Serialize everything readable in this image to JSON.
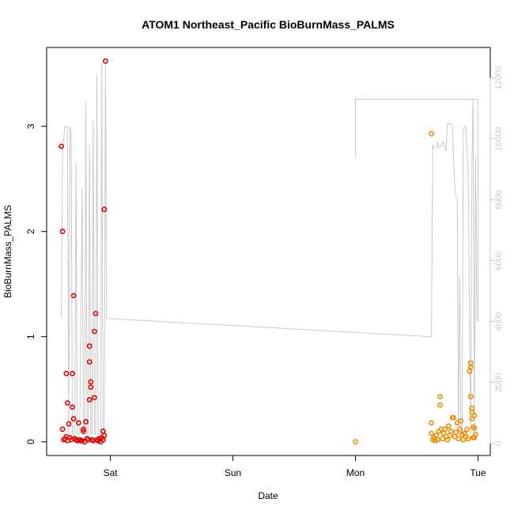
{
  "chart_data": {
    "type": "scatter",
    "title": "ATOM1 Northeast_Pacific BioBurnMass_PALMS",
    "xlabel": "Date",
    "ylabel": "BioBurnMass_PALMS",
    "x_ticks": [
      "Sat",
      "Sun",
      "Mon",
      "Tue"
    ],
    "y_ticks": [
      "0",
      "1",
      "2",
      "3"
    ],
    "y2_ticks": [
      "0",
      "2000",
      "4000",
      "6000",
      "8000",
      "10000",
      "12000"
    ],
    "xlim_days": [
      -0.52,
      3.1
    ],
    "ylim": [
      -0.13,
      3.75
    ],
    "y2lim": [
      -400,
      13000
    ],
    "colors": {
      "series_a": "#e00000",
      "series_b": "#f08c00",
      "altitude_line": "#c8c8c8"
    },
    "series": [
      {
        "values": [
          {
            "x": -0.4,
            "y": 2.81
          },
          {
            "x": -0.39,
            "y": 2.0
          },
          {
            "x": -0.39,
            "y": 0.12
          },
          {
            "x": -0.38,
            "y": 0.02
          },
          {
            "x": -0.37,
            "y": 0.03
          },
          {
            "x": -0.36,
            "y": 0.05
          },
          {
            "x": -0.36,
            "y": 0.65
          },
          {
            "x": -0.35,
            "y": 0.37
          },
          {
            "x": -0.35,
            "y": 0.01
          },
          {
            "x": -0.34,
            "y": 0.17
          },
          {
            "x": -0.33,
            "y": 0.04
          },
          {
            "x": -0.32,
            "y": 0.02
          },
          {
            "x": -0.31,
            "y": 0.65
          },
          {
            "x": -0.31,
            "y": 0.33
          },
          {
            "x": -0.3,
            "y": 0.22
          },
          {
            "x": -0.3,
            "y": 1.39
          },
          {
            "x": -0.29,
            "y": 0.03
          },
          {
            "x": -0.28,
            "y": 0.02
          },
          {
            "x": -0.27,
            "y": 0.01
          },
          {
            "x": -0.26,
            "y": 0.18
          },
          {
            "x": -0.25,
            "y": 0.02
          },
          {
            "x": -0.24,
            "y": 0.01
          },
          {
            "x": -0.23,
            "y": 0.01
          },
          {
            "x": -0.22,
            "y": 0.1
          },
          {
            "x": -0.22,
            "y": 0.12
          },
          {
            "x": -0.21,
            "y": 0.0
          },
          {
            "x": -0.2,
            "y": 0.19
          },
          {
            "x": -0.19,
            "y": 0.03
          },
          {
            "x": -0.18,
            "y": 0.02
          },
          {
            "x": -0.17,
            "y": 0.4
          },
          {
            "x": -0.17,
            "y": 0.76
          },
          {
            "x": -0.17,
            "y": 0.91
          },
          {
            "x": -0.16,
            "y": 0.52
          },
          {
            "x": -0.16,
            "y": 0.57
          },
          {
            "x": -0.15,
            "y": 0.02
          },
          {
            "x": -0.14,
            "y": 0.01
          },
          {
            "x": -0.13,
            "y": 0.42
          },
          {
            "x": -0.13,
            "y": 1.05
          },
          {
            "x": -0.12,
            "y": 1.22
          },
          {
            "x": -0.11,
            "y": 0.02
          },
          {
            "x": -0.1,
            "y": 0.01
          },
          {
            "x": -0.09,
            "y": 0.03
          },
          {
            "x": -0.08,
            "y": 0.0
          },
          {
            "x": -0.07,
            "y": 0.04
          },
          {
            "x": -0.06,
            "y": 0.1
          },
          {
            "x": -0.06,
            "y": 0.02
          },
          {
            "x": -0.05,
            "y": 0.06
          },
          {
            "x": -0.05,
            "y": 2.21
          },
          {
            "x": -0.04,
            "y": 3.62
          }
        ]
      },
      {
        "values": [
          {
            "x": 2.0,
            "y": 0.0
          },
          {
            "x": 2.62,
            "y": 2.93
          },
          {
            "x": 2.62,
            "y": 0.08
          },
          {
            "x": 2.62,
            "y": 0.18
          },
          {
            "x": 2.63,
            "y": 0.02
          },
          {
            "x": 2.64,
            "y": 0.04
          },
          {
            "x": 2.65,
            "y": 0.01
          },
          {
            "x": 2.66,
            "y": 0.06
          },
          {
            "x": 2.67,
            "y": 0.02
          },
          {
            "x": 2.68,
            "y": 0.1
          },
          {
            "x": 2.69,
            "y": 0.35
          },
          {
            "x": 2.69,
            "y": 0.43
          },
          {
            "x": 2.7,
            "y": 0.12
          },
          {
            "x": 2.71,
            "y": 0.03
          },
          {
            "x": 2.72,
            "y": 0.08
          },
          {
            "x": 2.73,
            "y": 0.12
          },
          {
            "x": 2.74,
            "y": 0.05
          },
          {
            "x": 2.75,
            "y": 0.02
          },
          {
            "x": 2.76,
            "y": 0.15
          },
          {
            "x": 2.77,
            "y": 0.06
          },
          {
            "x": 2.78,
            "y": 0.1
          },
          {
            "x": 2.79,
            "y": 0.23
          },
          {
            "x": 2.8,
            "y": 0.23
          },
          {
            "x": 2.81,
            "y": 0.05
          },
          {
            "x": 2.82,
            "y": 0.09
          },
          {
            "x": 2.83,
            "y": 0.18
          },
          {
            "x": 2.84,
            "y": 0.03
          },
          {
            "x": 2.85,
            "y": 0.12
          },
          {
            "x": 2.86,
            "y": 0.2
          },
          {
            "x": 2.87,
            "y": 0.07
          },
          {
            "x": 2.88,
            "y": 0.02
          },
          {
            "x": 2.89,
            "y": 0.08
          },
          {
            "x": 2.9,
            "y": 0.05
          },
          {
            "x": 2.91,
            "y": 0.12
          },
          {
            "x": 2.92,
            "y": 0.03
          },
          {
            "x": 2.93,
            "y": 0.67
          },
          {
            "x": 2.94,
            "y": 0.71
          },
          {
            "x": 2.94,
            "y": 0.75
          },
          {
            "x": 2.94,
            "y": 0.43
          },
          {
            "x": 2.95,
            "y": 0.28
          },
          {
            "x": 2.95,
            "y": 0.32
          },
          {
            "x": 2.95,
            "y": 0.22
          },
          {
            "x": 2.96,
            "y": 0.14
          },
          {
            "x": 2.96,
            "y": 0.04
          },
          {
            "x": 2.97,
            "y": 0.25
          },
          {
            "x": 2.97,
            "y": 0.13
          },
          {
            "x": 2.97,
            "y": 0.04
          },
          {
            "x": 2.98,
            "y": 0.07
          }
        ]
      }
    ],
    "altitude_line": [
      {
        "x": -0.4,
        "y": 4100
      },
      {
        "x": -0.39,
        "y": 9600
      },
      {
        "x": -0.37,
        "y": 10400
      },
      {
        "x": -0.35,
        "y": 10400
      },
      {
        "x": -0.34,
        "y": 300
      },
      {
        "x": -0.33,
        "y": 10400
      },
      {
        "x": -0.32,
        "y": 10200
      },
      {
        "x": -0.31,
        "y": 300
      },
      {
        "x": -0.29,
        "y": 300
      },
      {
        "x": -0.28,
        "y": 9200
      },
      {
        "x": -0.27,
        "y": 300
      },
      {
        "x": -0.25,
        "y": 300
      },
      {
        "x": -0.23,
        "y": 8400
      },
      {
        "x": -0.22,
        "y": 300
      },
      {
        "x": -0.21,
        "y": 300
      },
      {
        "x": -0.2,
        "y": 11200
      },
      {
        "x": -0.19,
        "y": 300
      },
      {
        "x": -0.18,
        "y": 300
      },
      {
        "x": -0.17,
        "y": 9800
      },
      {
        "x": -0.16,
        "y": 300
      },
      {
        "x": -0.15,
        "y": 300
      },
      {
        "x": -0.14,
        "y": 10600
      },
      {
        "x": -0.13,
        "y": 300
      },
      {
        "x": -0.12,
        "y": 300
      },
      {
        "x": -0.11,
        "y": 12100
      },
      {
        "x": -0.1,
        "y": 300
      },
      {
        "x": -0.08,
        "y": 300
      },
      {
        "x": -0.07,
        "y": 12500
      },
      {
        "x": -0.06,
        "y": 300
      },
      {
        "x": -0.05,
        "y": 300
      },
      {
        "x": -0.04,
        "y": 12400
      },
      {
        "x": -0.03,
        "y": 4100
      },
      {
        "x": 2.62,
        "y": 3500
      },
      {
        "x": 2.63,
        "y": 9800
      },
      {
        "x": 2.64,
        "y": 9700
      },
      {
        "x": 2.66,
        "y": 9700
      },
      {
        "x": 2.67,
        "y": 9900
      },
      {
        "x": 2.68,
        "y": 9700
      },
      {
        "x": 2.7,
        "y": 9800
      },
      {
        "x": 2.72,
        "y": 9900
      },
      {
        "x": 2.73,
        "y": 9700
      },
      {
        "x": 2.74,
        "y": 9600
      },
      {
        "x": 2.75,
        "y": 10500
      },
      {
        "x": 2.76,
        "y": 10500
      },
      {
        "x": 2.78,
        "y": 10500
      },
      {
        "x": 2.79,
        "y": 10400
      },
      {
        "x": 2.8,
        "y": 9500
      },
      {
        "x": 2.81,
        "y": 8500
      },
      {
        "x": 2.82,
        "y": 8100
      },
      {
        "x": 2.83,
        "y": 8000
      },
      {
        "x": 2.84,
        "y": 300
      },
      {
        "x": 2.85,
        "y": 5500
      },
      {
        "x": 2.86,
        "y": 300
      },
      {
        "x": 2.87,
        "y": 300
      },
      {
        "x": 2.88,
        "y": 10300
      },
      {
        "x": 2.89,
        "y": 10400
      },
      {
        "x": 2.9,
        "y": 10400
      },
      {
        "x": 2.91,
        "y": 9500
      },
      {
        "x": 2.92,
        "y": 9000
      },
      {
        "x": 2.93,
        "y": 4200
      },
      {
        "x": 2.94,
        "y": 300
      },
      {
        "x": 2.95,
        "y": 9200
      },
      {
        "x": 2.96,
        "y": 11300
      },
      {
        "x": 2.97,
        "y": 300
      },
      {
        "x": 2.98,
        "y": 9400
      },
      {
        "x": 2.99,
        "y": 4000
      }
    ],
    "altitude_segment2": [
      {
        "x": 2.0,
        "y": 9400
      },
      {
        "x": 2.0,
        "y": 11300
      },
      {
        "x": 3.0,
        "y": 11300
      },
      {
        "x": 3.0,
        "y": 4000
      }
    ],
    "grid": false,
    "legend": "none"
  }
}
